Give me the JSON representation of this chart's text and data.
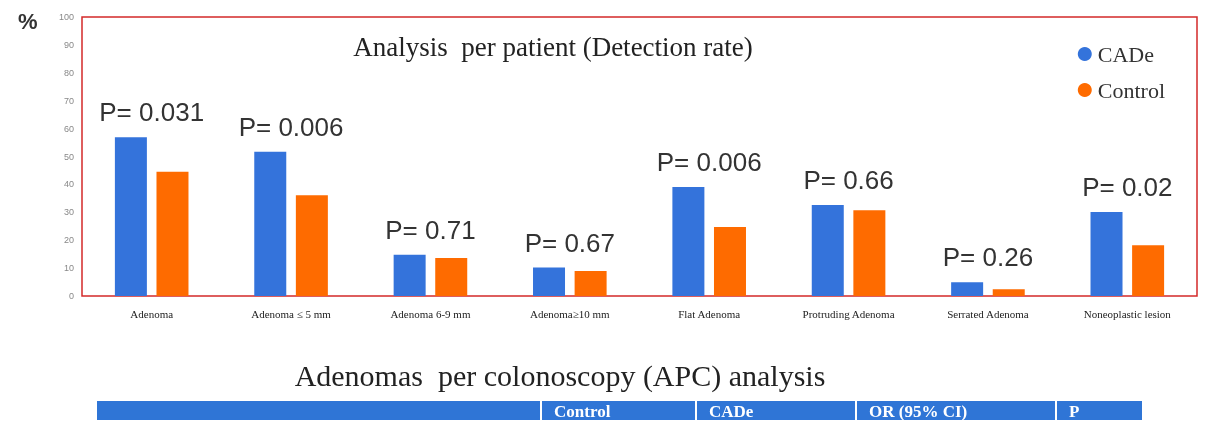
{
  "chart_data": {
    "type": "bar",
    "title": "Analysis  per patient (Detection rate)",
    "ylabel": "%",
    "categories": [
      "Adenoma",
      "Adenoma ≤ 5 mm",
      "Adenoma 6-9 mm",
      "Adenoma≥10 mm",
      "Flat Adenoma",
      "Protruding Adenoma",
      "Serrated Adenoma",
      "Noneoplastic lesion"
    ],
    "series": [
      {
        "name": "CADe",
        "color": "#3473db",
        "values": [
          56.9,
          51.7,
          14.8,
          10.2,
          39.1,
          32.6,
          4.9,
          30.1
        ]
      },
      {
        "name": "Control",
        "color": "#fe6b00",
        "values": [
          44.5,
          36.1,
          13.6,
          9.0,
          24.7,
          30.7,
          2.4,
          18.2
        ]
      }
    ],
    "ylim": [
      0,
      100
    ],
    "yticks": [
      0,
      10,
      20,
      30,
      40,
      50,
      60,
      70,
      80,
      90,
      100
    ],
    "grid": false,
    "legend": "top right",
    "marker": "circle",
    "annotations": [
      "P= 0.031",
      "P= 0.006",
      "P= 0.71",
      "P= 0.67",
      "P= 0.006",
      "P= 0.66",
      "P= 0.26",
      "P= 0.02",
      "Adenomas  per colonoscopy (APC) analysis",
      "Control",
      "CADe",
      "OR (95% CI)",
      "P"
    ]
  }
}
